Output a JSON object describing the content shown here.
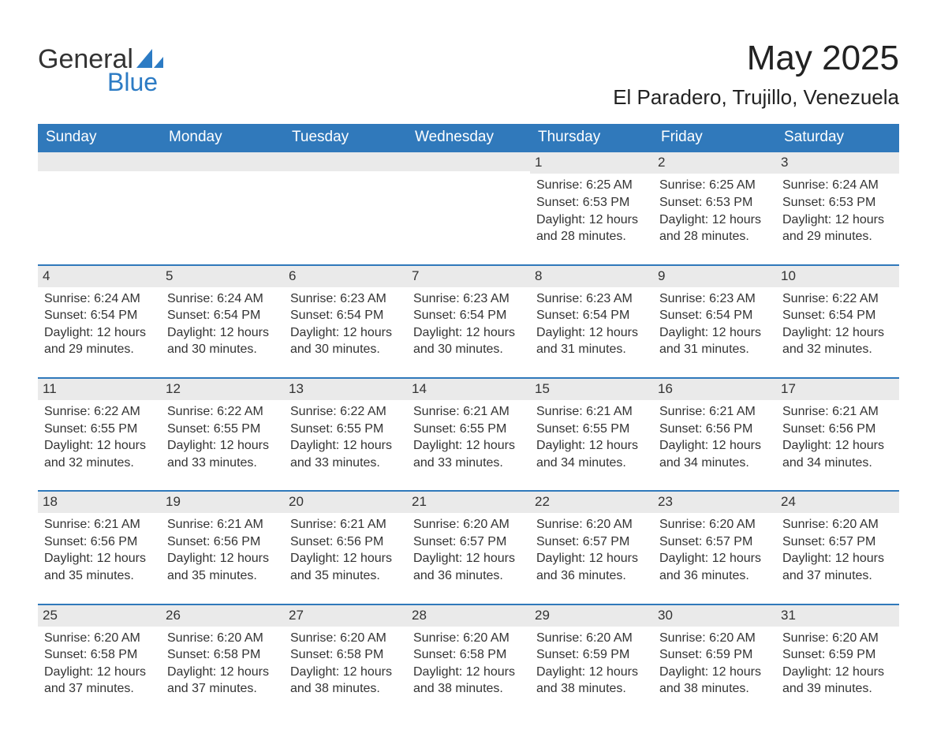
{
  "logo": {
    "part1": "General",
    "part2": "Blue",
    "sail_color": "#2c7bc4"
  },
  "title": "May 2025",
  "location": "El Paradero, Trujillo, Venezuela",
  "colors": {
    "header_bg": "#3079bb",
    "header_text": "#ffffff",
    "daynum_bg": "#eaeaea",
    "daynum_border": "#3079bb",
    "body_text": "#333333"
  },
  "weekdays": [
    "Sunday",
    "Monday",
    "Tuesday",
    "Wednesday",
    "Thursday",
    "Friday",
    "Saturday"
  ],
  "weeks": [
    [
      null,
      null,
      null,
      null,
      {
        "n": "1",
        "sr": "6:25 AM",
        "ss": "6:53 PM",
        "dl": "12 hours and 28 minutes."
      },
      {
        "n": "2",
        "sr": "6:25 AM",
        "ss": "6:53 PM",
        "dl": "12 hours and 28 minutes."
      },
      {
        "n": "3",
        "sr": "6:24 AM",
        "ss": "6:53 PM",
        "dl": "12 hours and 29 minutes."
      }
    ],
    [
      {
        "n": "4",
        "sr": "6:24 AM",
        "ss": "6:54 PM",
        "dl": "12 hours and 29 minutes."
      },
      {
        "n": "5",
        "sr": "6:24 AM",
        "ss": "6:54 PM",
        "dl": "12 hours and 30 minutes."
      },
      {
        "n": "6",
        "sr": "6:23 AM",
        "ss": "6:54 PM",
        "dl": "12 hours and 30 minutes."
      },
      {
        "n": "7",
        "sr": "6:23 AM",
        "ss": "6:54 PM",
        "dl": "12 hours and 30 minutes."
      },
      {
        "n": "8",
        "sr": "6:23 AM",
        "ss": "6:54 PM",
        "dl": "12 hours and 31 minutes."
      },
      {
        "n": "9",
        "sr": "6:23 AM",
        "ss": "6:54 PM",
        "dl": "12 hours and 31 minutes."
      },
      {
        "n": "10",
        "sr": "6:22 AM",
        "ss": "6:54 PM",
        "dl": "12 hours and 32 minutes."
      }
    ],
    [
      {
        "n": "11",
        "sr": "6:22 AM",
        "ss": "6:55 PM",
        "dl": "12 hours and 32 minutes."
      },
      {
        "n": "12",
        "sr": "6:22 AM",
        "ss": "6:55 PM",
        "dl": "12 hours and 33 minutes."
      },
      {
        "n": "13",
        "sr": "6:22 AM",
        "ss": "6:55 PM",
        "dl": "12 hours and 33 minutes."
      },
      {
        "n": "14",
        "sr": "6:21 AM",
        "ss": "6:55 PM",
        "dl": "12 hours and 33 minutes."
      },
      {
        "n": "15",
        "sr": "6:21 AM",
        "ss": "6:55 PM",
        "dl": "12 hours and 34 minutes."
      },
      {
        "n": "16",
        "sr": "6:21 AM",
        "ss": "6:56 PM",
        "dl": "12 hours and 34 minutes."
      },
      {
        "n": "17",
        "sr": "6:21 AM",
        "ss": "6:56 PM",
        "dl": "12 hours and 34 minutes."
      }
    ],
    [
      {
        "n": "18",
        "sr": "6:21 AM",
        "ss": "6:56 PM",
        "dl": "12 hours and 35 minutes."
      },
      {
        "n": "19",
        "sr": "6:21 AM",
        "ss": "6:56 PM",
        "dl": "12 hours and 35 minutes."
      },
      {
        "n": "20",
        "sr": "6:21 AM",
        "ss": "6:56 PM",
        "dl": "12 hours and 35 minutes."
      },
      {
        "n": "21",
        "sr": "6:20 AM",
        "ss": "6:57 PM",
        "dl": "12 hours and 36 minutes."
      },
      {
        "n": "22",
        "sr": "6:20 AM",
        "ss": "6:57 PM",
        "dl": "12 hours and 36 minutes."
      },
      {
        "n": "23",
        "sr": "6:20 AM",
        "ss": "6:57 PM",
        "dl": "12 hours and 36 minutes."
      },
      {
        "n": "24",
        "sr": "6:20 AM",
        "ss": "6:57 PM",
        "dl": "12 hours and 37 minutes."
      }
    ],
    [
      {
        "n": "25",
        "sr": "6:20 AM",
        "ss": "6:58 PM",
        "dl": "12 hours and 37 minutes."
      },
      {
        "n": "26",
        "sr": "6:20 AM",
        "ss": "6:58 PM",
        "dl": "12 hours and 37 minutes."
      },
      {
        "n": "27",
        "sr": "6:20 AM",
        "ss": "6:58 PM",
        "dl": "12 hours and 38 minutes."
      },
      {
        "n": "28",
        "sr": "6:20 AM",
        "ss": "6:58 PM",
        "dl": "12 hours and 38 minutes."
      },
      {
        "n": "29",
        "sr": "6:20 AM",
        "ss": "6:59 PM",
        "dl": "12 hours and 38 minutes."
      },
      {
        "n": "30",
        "sr": "6:20 AM",
        "ss": "6:59 PM",
        "dl": "12 hours and 38 minutes."
      },
      {
        "n": "31",
        "sr": "6:20 AM",
        "ss": "6:59 PM",
        "dl": "12 hours and 39 minutes."
      }
    ]
  ],
  "labels": {
    "sunrise": "Sunrise:",
    "sunset": "Sunset:",
    "daylight": "Daylight:"
  }
}
